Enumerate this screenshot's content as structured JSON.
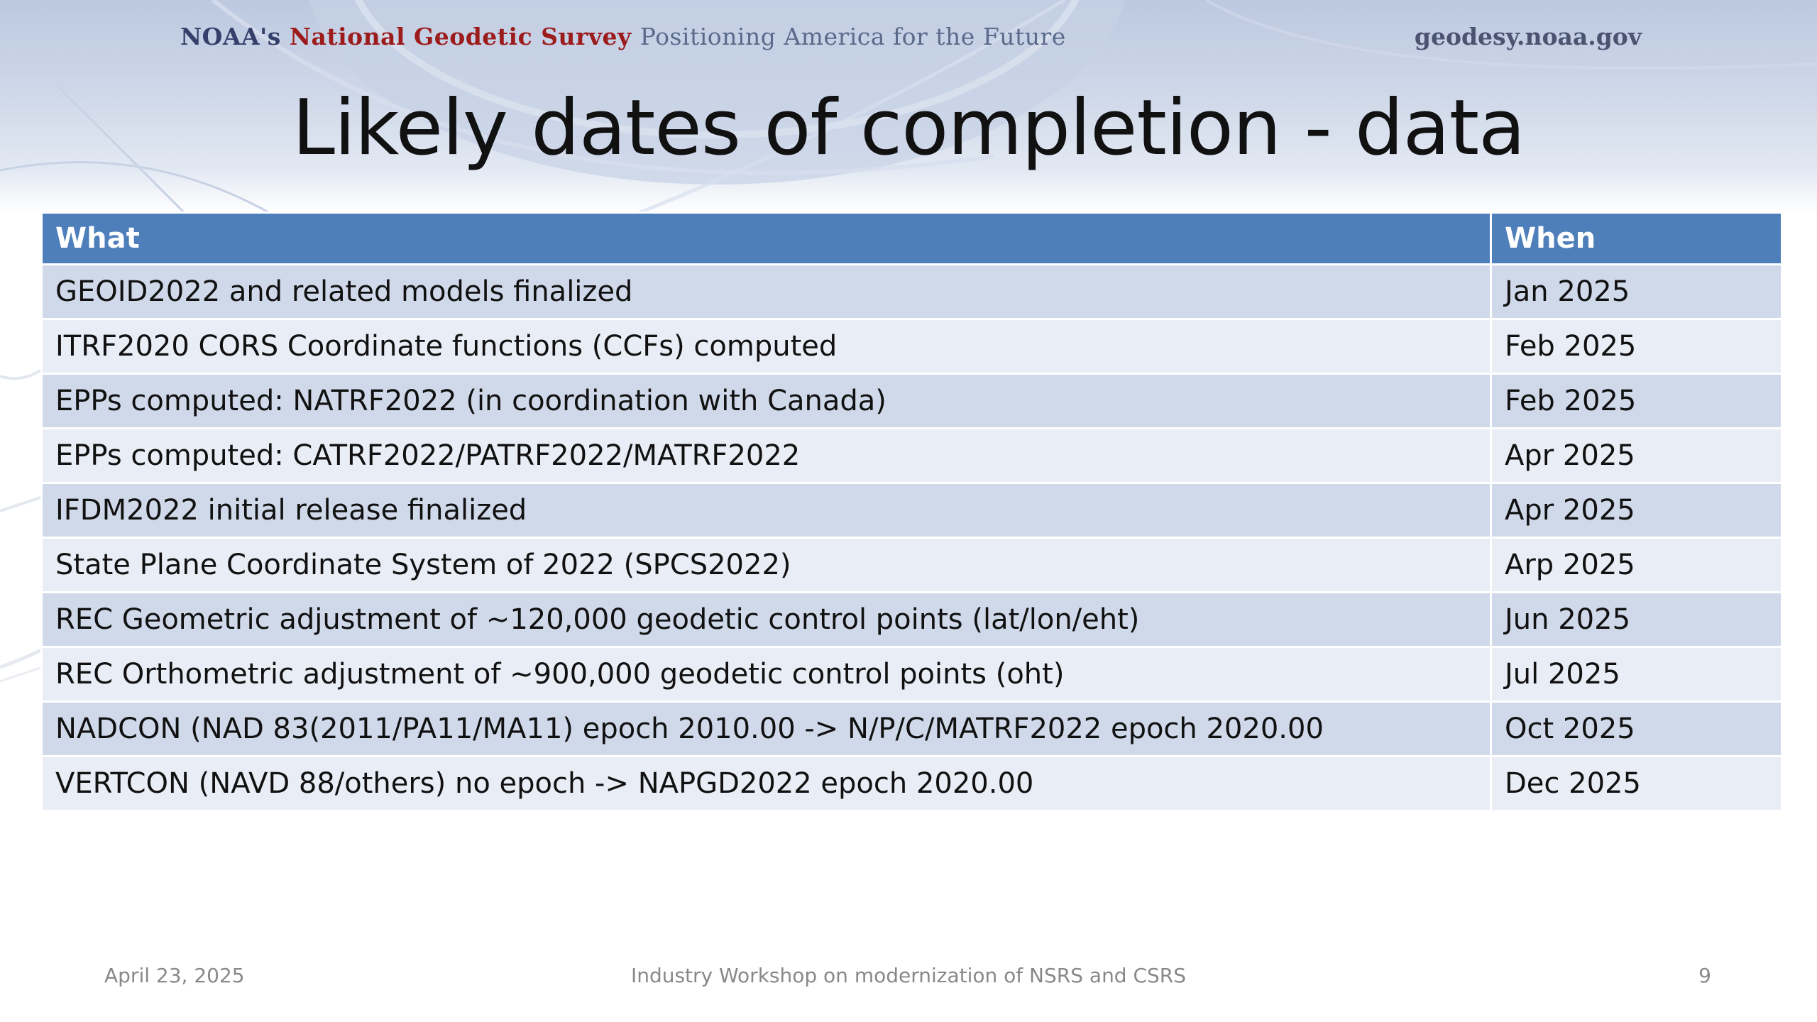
{
  "header": {
    "noaa_label": "NOAA's",
    "ngs_label": "National Geodetic Survey",
    "tagline": "Positioning America for the Future",
    "site_url": "geodesy.noaa.gov"
  },
  "title": "Likely dates of completion - data",
  "table": {
    "headers": [
      "What",
      "When"
    ],
    "rows": [
      {
        "what": "GEOID2022 and related models finalized",
        "when": "Jan 2025"
      },
      {
        "what": "ITRF2020 CORS Coordinate functions (CCFs) computed",
        "when": "Feb 2025"
      },
      {
        "what": "EPPs computed: NATRF2022 (in coordination with Canada)",
        "when": "Feb 2025"
      },
      {
        "what": "EPPs computed:  CATRF2022/PATRF2022/MATRF2022",
        "when": "Apr 2025"
      },
      {
        "what": "IFDM2022 initial release finalized",
        "when": "Apr 2025"
      },
      {
        "what": "State Plane Coordinate System of 2022 (SPCS2022)",
        "when": "Arp 2025"
      },
      {
        "what": "REC Geometric adjustment of ~120,000 geodetic control points (lat/lon/eht)",
        "when": "Jun 2025"
      },
      {
        "what": "REC Orthometric adjustment of ~900,000 geodetic control points (oht)",
        "when": "Jul 2025"
      },
      {
        "what": "NADCON (NAD 83(2011/PA11/MA11) epoch 2010.00 -> N/P/C/MATRF2022 epoch 2020.00",
        "when": "Oct 2025"
      },
      {
        "what": "VERTCON (NAVD 88/others) no epoch -> NAPGD2022 epoch 2020.00",
        "when": "Dec 2025"
      }
    ]
  },
  "footer": {
    "date": "April 23, 2025",
    "event": "Industry Workshop on modernization of NSRS and CSRS",
    "page_number": "9"
  },
  "colors": {
    "header_row": "#4f7fba",
    "row_odd": "#d0d9ea",
    "row_even": "#e9edf5",
    "ngs_red": "#9c1b1b"
  }
}
